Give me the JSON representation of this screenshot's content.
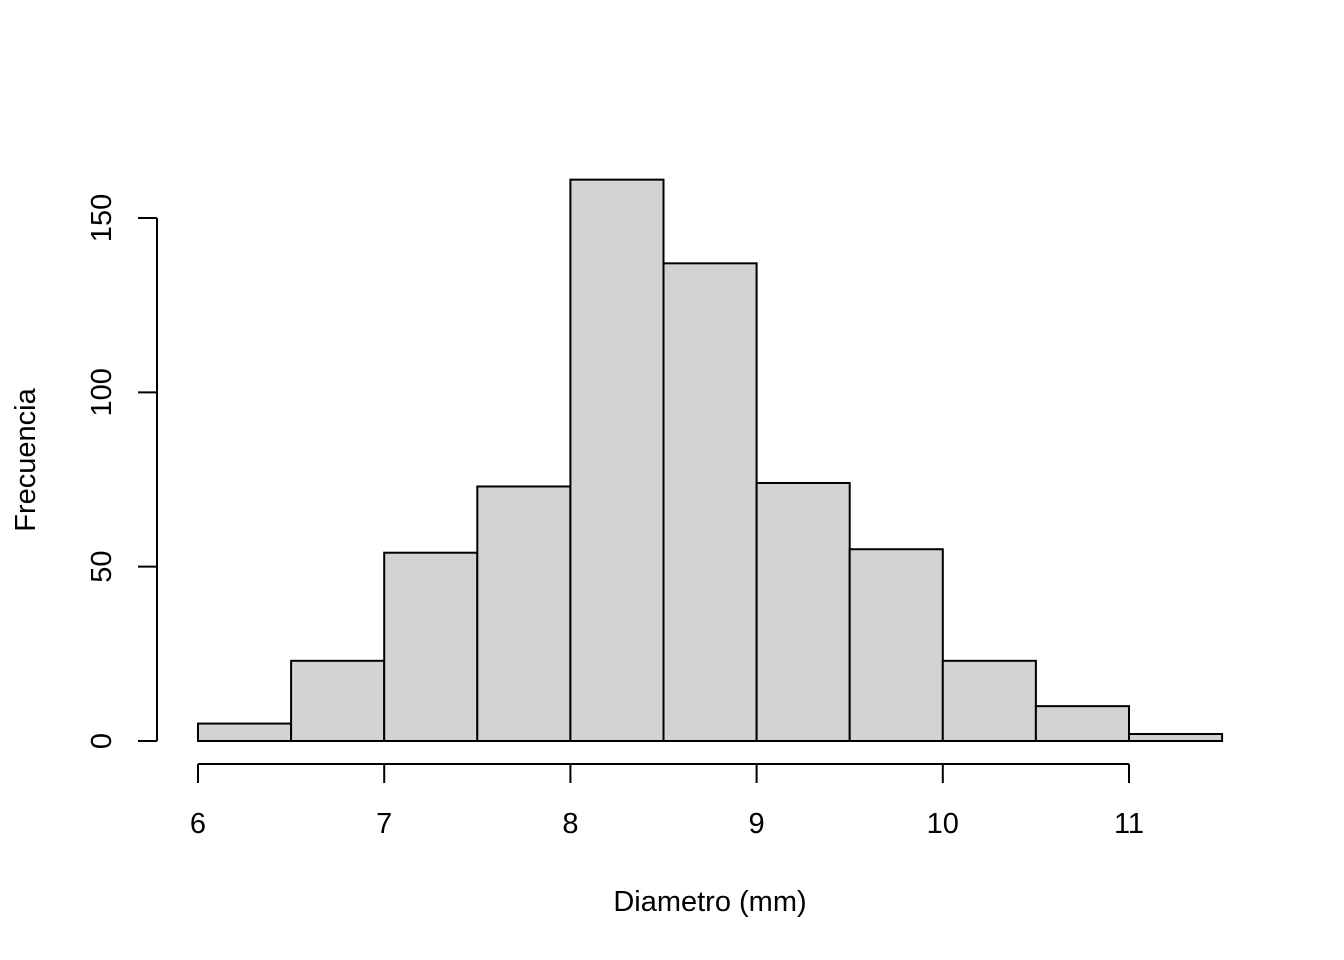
{
  "chart_data": {
    "type": "bar",
    "subtype": "histogram",
    "bin_edges": [
      6,
      6.5,
      7,
      7.5,
      8,
      8.5,
      9,
      9.5,
      10,
      10.5,
      11,
      11.5
    ],
    "values": [
      5,
      23,
      54,
      73,
      161,
      137,
      74,
      55,
      23,
      10,
      2
    ],
    "xlabel": "Diametro (mm)",
    "ylabel": "Frecuencia",
    "xticks": [
      6,
      7,
      8,
      9,
      10,
      11
    ],
    "yticks": [
      0,
      50,
      100,
      150
    ],
    "xlim": [
      6,
      11.5
    ],
    "ylim": [
      0,
      161
    ],
    "grid": false,
    "bar_color": "#d3d3d3",
    "edge_color": "#000000"
  }
}
